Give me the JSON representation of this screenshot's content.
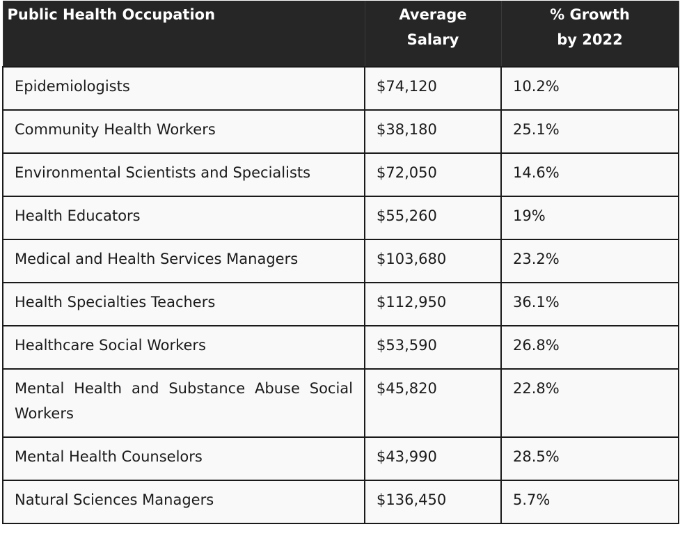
{
  "table": {
    "headers": {
      "occupation": "Public Health Occupation",
      "salary_line1": "Average",
      "salary_line2": "Salary",
      "growth_line1": "% Growth",
      "growth_line2": "by 2022"
    },
    "rows": [
      {
        "occupation": "Epidemiologists",
        "salary": "$74,120",
        "growth": "10.2%"
      },
      {
        "occupation": "Community Health Workers",
        "salary": "$38,180",
        "growth": "25.1%"
      },
      {
        "occupation": "Environmental Scientists and Specialists",
        "salary": "$72,050",
        "growth": "14.6%"
      },
      {
        "occupation": "Health Educators",
        "salary": "$55,260",
        "growth": "19%"
      },
      {
        "occupation": "Medical and Health Services Managers",
        "salary": "$103,680",
        "growth": "23.2%"
      },
      {
        "occupation": "Health Specialties Teachers",
        "salary": "$112,950",
        "growth": "36.1%"
      },
      {
        "occupation": "Healthcare Social Workers",
        "salary": "$53,590",
        "growth": "26.8%"
      },
      {
        "occupation": "Mental Health and Substance Abuse Social Workers",
        "salary": "$45,820",
        "growth": "22.8%"
      },
      {
        "occupation": "Mental Health Counselors",
        "salary": "$43,990",
        "growth": "28.5%"
      },
      {
        "occupation": "Natural Sciences Managers",
        "salary": "$136,450",
        "growth": "5.7%"
      }
    ]
  }
}
